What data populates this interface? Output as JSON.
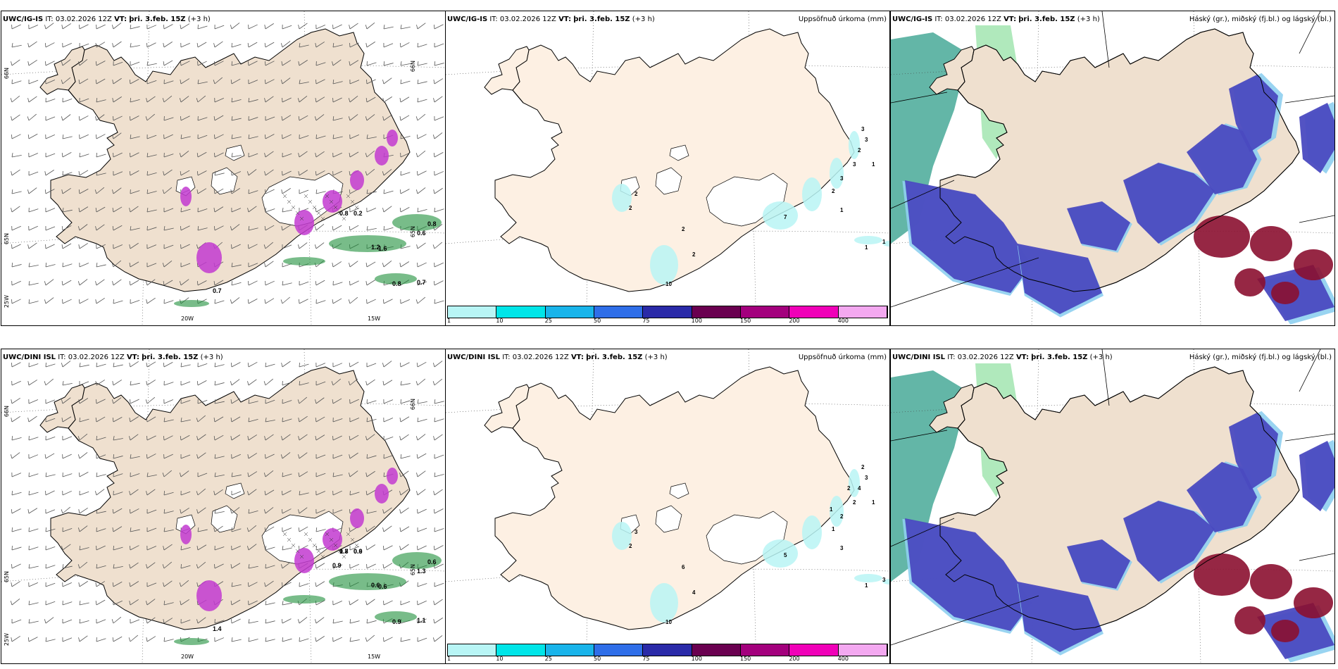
{
  "rows": [
    {
      "model": "UWC/IG-IS",
      "panels": [
        {
          "kind": "wind",
          "model": "UWC/IG-IS",
          "it_label": "IT:",
          "it_value": "03.02.2026 12Z",
          "vt_label": "VT:",
          "vt_value": "þri. 3.feb. 15Z",
          "lead": "(+3 h)",
          "right_title": "",
          "values": [
            "0.8",
            "0.2",
            "1.2",
            "1.6",
            "0.8",
            "0.6",
            "0.8",
            "0.7",
            "0.7"
          ],
          "lat_labels": [
            "66N",
            "65N",
            "66N",
            "65N"
          ],
          "lon_labels": [
            "20W",
            "15W",
            "25W"
          ]
        },
        {
          "kind": "precip",
          "model": "UWC/IG-IS",
          "it_label": "IT:",
          "it_value": "03.02.2026 12Z",
          "vt_label": "VT:",
          "vt_value": "þri. 3.feb. 15Z",
          "lead": "(+3 h)",
          "right_title": "Uppsöfnuð úrkoma (mm)",
          "values": [
            "2",
            "2",
            "2",
            "10",
            "2",
            "7",
            "1",
            "2",
            "3",
            "3",
            "2",
            "3",
            "3",
            "1",
            "1",
            "1",
            "1"
          ]
        },
        {
          "kind": "cloud",
          "model": "UWC/IG-IS",
          "it_label": "IT:",
          "it_value": "03.02.2026 12Z",
          "vt_label": "VT:",
          "vt_value": "þri. 3.feb. 15Z",
          "lead": "(+3 h)",
          "right_title": "Háský (gr.), miðský (fj.bl.) og lágský (bl.)"
        }
      ]
    },
    {
      "model": "UWC/DINI ISL",
      "panels": [
        {
          "kind": "wind",
          "model": "UWC/DINI ISL",
          "it_label": "IT:",
          "it_value": "03.02.2026 12Z",
          "vt_label": "VT:",
          "vt_value": "þri. 3.feb. 15Z",
          "lead": "(+3 h)",
          "right_title": "",
          "values": [
            "0.7",
            "0.9",
            "0.6",
            "0.6",
            "0.6",
            "1.3",
            "0.9",
            "1.1",
            "1.4",
            "0.9",
            "1.8",
            "0.6"
          ],
          "lat_labels": [
            "66N",
            "65N",
            "66N",
            "65N"
          ],
          "lon_labels": [
            "20W",
            "15W",
            "25W"
          ]
        },
        {
          "kind": "precip",
          "model": "UWC/DINI ISL",
          "it_label": "IT:",
          "it_value": "03.02.2026 12Z",
          "vt_label": "VT:",
          "vt_value": "þri. 3.feb. 15Z",
          "lead": "(+3 h)",
          "right_title": "Uppsöfnuð úrkoma (mm)",
          "values": [
            "3",
            "2",
            "6",
            "10",
            "4",
            "5",
            "3",
            "1",
            "2",
            "2",
            "4",
            "3",
            "2",
            "1",
            "1",
            "3",
            "2",
            "2",
            "1"
          ]
        },
        {
          "kind": "cloud",
          "model": "UWC/DINI ISL",
          "it_label": "IT:",
          "it_value": "03.02.2026 12Z",
          "vt_label": "VT:",
          "vt_value": "þri. 3.feb. 15Z",
          "lead": "(+3 h)",
          "right_title": "Háský (gr.), miðský (fj.bl.) og lágský (bl.)"
        }
      ]
    }
  ],
  "colorbar": {
    "labels": [
      "1",
      "10",
      "25",
      "50",
      "75",
      "100",
      "150",
      "200",
      "400"
    ],
    "colors": [
      "#b8f5f5",
      "#00e5e8",
      "#19b4ea",
      "#2f6ee8",
      "#2a2aa8",
      "#6a0050",
      "#a3007d",
      "#f000b8",
      "#f3a8f0"
    ]
  },
  "colors": {
    "land": "#efe0cf",
    "land_precip": "#fdf0e3",
    "snow": "#ffffff",
    "precip_pink": "#c23ad0",
    "precip_green": "#1e8f3a",
    "cloud_mid": "#4a4ac0",
    "cloud_low": "#8ecff0",
    "cloud_high": "#8b1030",
    "cloud_sea": "#2f9e8a"
  }
}
